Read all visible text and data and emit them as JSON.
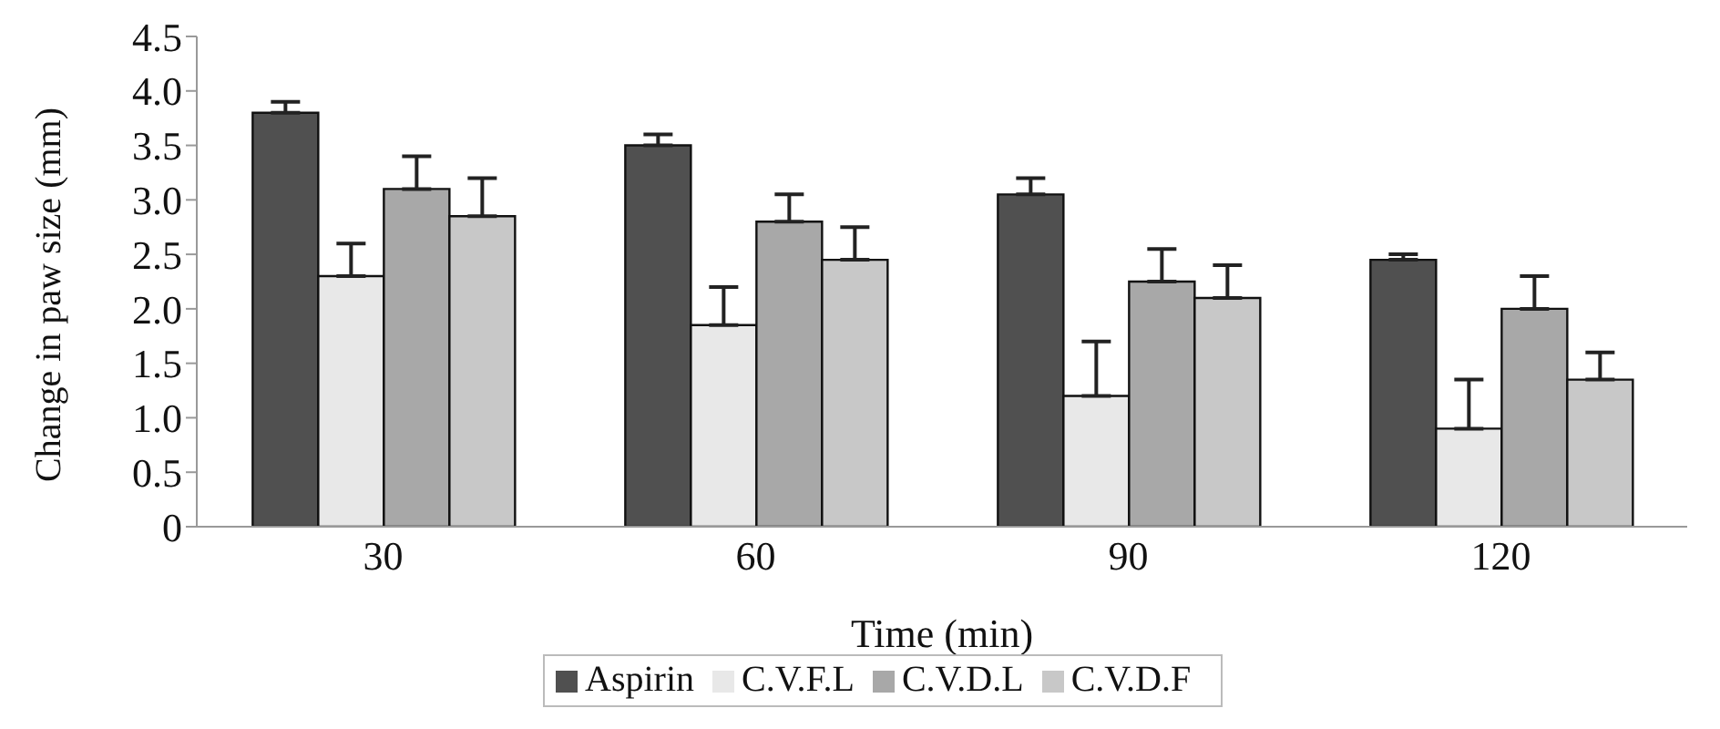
{
  "chart_data": {
    "type": "bar",
    "xlabel": "Time (min)",
    "ylabel": "Change in paw size (mm)",
    "categories": [
      "30",
      "60",
      "90",
      "120"
    ],
    "series": [
      {
        "name": "Aspirin",
        "color": "#505050",
        "values": [
          3.8,
          3.5,
          3.05,
          2.45
        ],
        "errors": [
          0.1,
          0.1,
          0.15,
          0.05
        ]
      },
      {
        "name": "C.V.F.L",
        "color": "#e8e8e8",
        "values": [
          2.3,
          1.85,
          1.2,
          0.9
        ],
        "errors": [
          0.3,
          0.35,
          0.5,
          0.45
        ]
      },
      {
        "name": "C.V.D.L",
        "color": "#a8a8a8",
        "values": [
          3.1,
          2.8,
          2.25,
          2.0
        ],
        "errors": [
          0.3,
          0.25,
          0.3,
          0.3
        ]
      },
      {
        "name": "C.V.D.F",
        "color": "#c8c8c8",
        "values": [
          2.85,
          2.45,
          2.1,
          1.35
        ],
        "errors": [
          0.35,
          0.3,
          0.3,
          0.25
        ]
      }
    ],
    "ylim": [
      0,
      4.5
    ],
    "yticks": [
      0,
      0.5,
      {
        "value": 1,
        "label": "1.0"
      },
      1.5,
      {
        "value": 2,
        "label": "2.0"
      },
      2.5,
      {
        "value": 3,
        "label": "3.0"
      },
      3.5,
      {
        "value": 4,
        "label": "4.0"
      },
      4.5
    ],
    "grid": false,
    "legend": "bottom"
  }
}
